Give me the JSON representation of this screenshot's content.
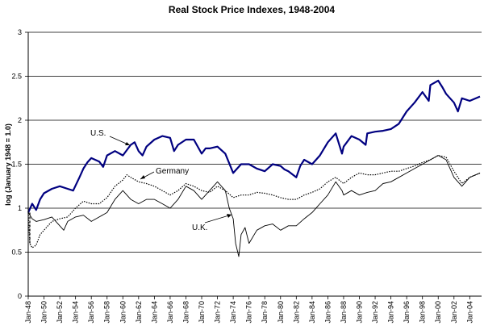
{
  "chart_data": {
    "type": "line",
    "title": "Real Stock Price Indexes, 1948-2004",
    "ylabel": "log (January 1948 = 1.0)",
    "xlabel": "",
    "ylim": [
      0,
      3
    ],
    "yticks": [
      "0",
      "0.5",
      "1",
      "1.5",
      "2",
      "2.5",
      "3"
    ],
    "xlim": [
      1948,
      2005.5
    ],
    "xticks": [
      "Jan-48",
      "Jan-50",
      "Jan-52",
      "Jan-54",
      "Jan-56",
      "Jan-58",
      "Jan-60",
      "Jan-62",
      "Jan-64",
      "Jan-66",
      "Jan-68",
      "Jan-70",
      "Jan-72",
      "Jan-74",
      "Jan-76",
      "Jan-78",
      "Jan-80",
      "Jan-82",
      "Jan-84",
      "Jan-86",
      "Jan-88",
      "Jan-90",
      "Jan-92",
      "Jan-94",
      "Jan-96",
      "Jan-98",
      "Jan-00",
      "Jan-02",
      "Jan-04"
    ],
    "grid": true,
    "series": [
      {
        "name": "U.S.",
        "color": "#000080",
        "style": "solid",
        "x": [
          1948,
          1948.5,
          1949,
          1949.5,
          1950,
          1951,
          1952,
          1953,
          1953.7,
          1954.5,
          1955,
          1955.5,
          1956,
          1957,
          1957.5,
          1958,
          1959,
          1960,
          1961,
          1961.5,
          1962,
          1962.5,
          1963,
          1964,
          1965,
          1966,
          1966.5,
          1967,
          1968,
          1969,
          1970,
          1970.5,
          1971,
          1972,
          1973,
          1974,
          1974.5,
          1975,
          1976,
          1977,
          1978,
          1979,
          1980,
          1980.5,
          1981,
          1982,
          1982.5,
          1983,
          1984,
          1985,
          1986,
          1987,
          1987.8,
          1988,
          1989,
          1990,
          1990.8,
          1991,
          1992,
          1993,
          1994,
          1995,
          1996,
          1997,
          1998,
          1998.8,
          1999,
          2000,
          2000.5,
          2001,
          2002,
          2002.5,
          2003,
          2004,
          2005.3
        ],
        "y": [
          0.95,
          1.05,
          0.98,
          1.1,
          1.17,
          1.22,
          1.25,
          1.22,
          1.2,
          1.35,
          1.45,
          1.52,
          1.57,
          1.53,
          1.47,
          1.6,
          1.65,
          1.6,
          1.72,
          1.75,
          1.65,
          1.6,
          1.7,
          1.78,
          1.82,
          1.8,
          1.65,
          1.72,
          1.78,
          1.78,
          1.62,
          1.68,
          1.68,
          1.7,
          1.62,
          1.4,
          1.45,
          1.5,
          1.5,
          1.45,
          1.42,
          1.5,
          1.48,
          1.44,
          1.42,
          1.35,
          1.48,
          1.55,
          1.5,
          1.6,
          1.75,
          1.85,
          1.62,
          1.7,
          1.82,
          1.78,
          1.72,
          1.85,
          1.87,
          1.88,
          1.9,
          1.96,
          2.1,
          2.2,
          2.32,
          2.22,
          2.4,
          2.45,
          2.38,
          2.3,
          2.2,
          2.1,
          2.25,
          2.22,
          2.27
        ]
      },
      {
        "name": "Germany",
        "color": "#000000",
        "style": "dotted",
        "x": [
          1948,
          1948.2,
          1948.5,
          1949,
          1949.5,
          1950,
          1951,
          1952,
          1953,
          1954,
          1955,
          1956,
          1957,
          1958,
          1959,
          1960,
          1960.5,
          1961,
          1962,
          1963,
          1964,
          1965,
          1966,
          1967,
          1968,
          1969,
          1970,
          1971,
          1972,
          1973,
          1974,
          1975,
          1976,
          1977,
          1978,
          1979,
          1980,
          1981,
          1982,
          1983,
          1984,
          1985,
          1986,
          1987,
          1988,
          1989,
          1990,
          1991,
          1992,
          1993,
          1994,
          1995,
          1996,
          1997,
          1998,
          1999,
          2000,
          2001,
          2002,
          2003,
          2004,
          2005.3
        ],
        "y": [
          0.95,
          0.6,
          0.55,
          0.58,
          0.7,
          0.75,
          0.85,
          0.88,
          0.9,
          1.0,
          1.08,
          1.05,
          1.05,
          1.12,
          1.25,
          1.32,
          1.38,
          1.35,
          1.3,
          1.28,
          1.25,
          1.2,
          1.15,
          1.2,
          1.28,
          1.25,
          1.2,
          1.18,
          1.25,
          1.2,
          1.12,
          1.15,
          1.15,
          1.18,
          1.17,
          1.15,
          1.12,
          1.1,
          1.1,
          1.15,
          1.18,
          1.22,
          1.3,
          1.35,
          1.28,
          1.35,
          1.4,
          1.38,
          1.38,
          1.4,
          1.42,
          1.42,
          1.45,
          1.48,
          1.52,
          1.55,
          1.6,
          1.58,
          1.42,
          1.28,
          1.35,
          1.4
        ]
      },
      {
        "name": "U.K.",
        "color": "#000000",
        "style": "solid-thin",
        "x": [
          1948,
          1948.5,
          1949,
          1950,
          1951,
          1952,
          1952.5,
          1953,
          1954,
          1955,
          1956,
          1957,
          1958,
          1959,
          1960,
          1961,
          1962,
          1963,
          1964,
          1965,
          1966,
          1967,
          1968,
          1969,
          1970,
          1971,
          1972,
          1973,
          1973.5,
          1974,
          1974.3,
          1974.7,
          1975,
          1975.5,
          1976,
          1977,
          1978,
          1979,
          1980,
          1981,
          1982,
          1983,
          1984,
          1985,
          1986,
          1987,
          1987.8,
          1988,
          1989,
          1990,
          1991,
          1992,
          1993,
          1994,
          1995,
          1996,
          1997,
          1998,
          1999,
          2000,
          2001,
          2002,
          2003,
          2004,
          2005.3
        ],
        "y": [
          0.95,
          0.88,
          0.85,
          0.87,
          0.9,
          0.8,
          0.75,
          0.85,
          0.9,
          0.92,
          0.85,
          0.9,
          0.95,
          1.1,
          1.2,
          1.1,
          1.05,
          1.1,
          1.1,
          1.05,
          1.0,
          1.1,
          1.25,
          1.2,
          1.1,
          1.2,
          1.3,
          1.2,
          1.0,
          0.88,
          0.6,
          0.45,
          0.7,
          0.78,
          0.6,
          0.75,
          0.8,
          0.82,
          0.75,
          0.8,
          0.8,
          0.88,
          0.95,
          1.05,
          1.15,
          1.3,
          1.2,
          1.15,
          1.2,
          1.15,
          1.18,
          1.2,
          1.28,
          1.3,
          1.35,
          1.4,
          1.45,
          1.5,
          1.55,
          1.6,
          1.55,
          1.35,
          1.25,
          1.35,
          1.4
        ]
      }
    ],
    "annotations": [
      {
        "text": "U.S.",
        "series": "U.S."
      },
      {
        "text": "Germany",
        "series": "Germany"
      },
      {
        "text": "U.K.",
        "series": "U.K."
      }
    ]
  }
}
